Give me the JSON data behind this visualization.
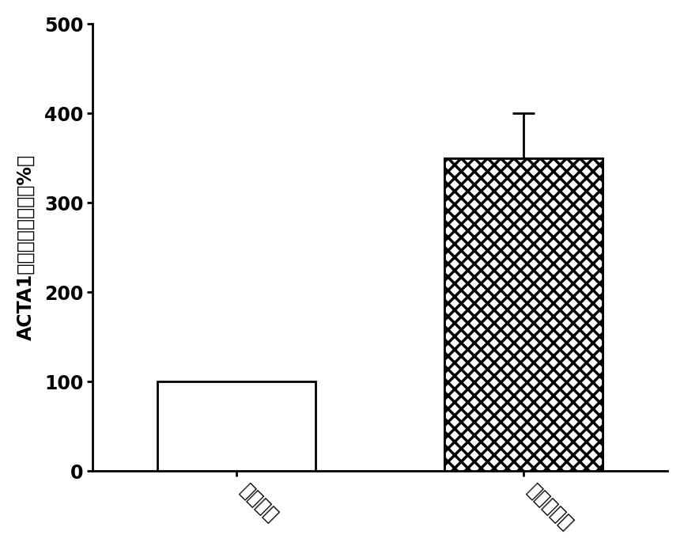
{
  "categories": [
    "正常组织",
    "舌鸞癌组织"
  ],
  "values": [
    100,
    350
  ],
  "error_lower": [
    0,
    0
  ],
  "error_upper": [
    0,
    50
  ],
  "ylabel": "ACTA1蛋白相对表达量（%）",
  "ylim": [
    0,
    500
  ],
  "yticks": [
    0,
    100,
    200,
    300,
    400,
    500
  ],
  "bar_width": 0.55,
  "linewidth": 2.0,
  "tick_fontsize": 17,
  "label_fontsize": 17,
  "background_color": "#ffffff",
  "error_capsize": 10,
  "error_linewidth": 2.0,
  "x_positions": [
    0.5,
    1.5
  ],
  "xlim": [
    0.0,
    2.0
  ]
}
